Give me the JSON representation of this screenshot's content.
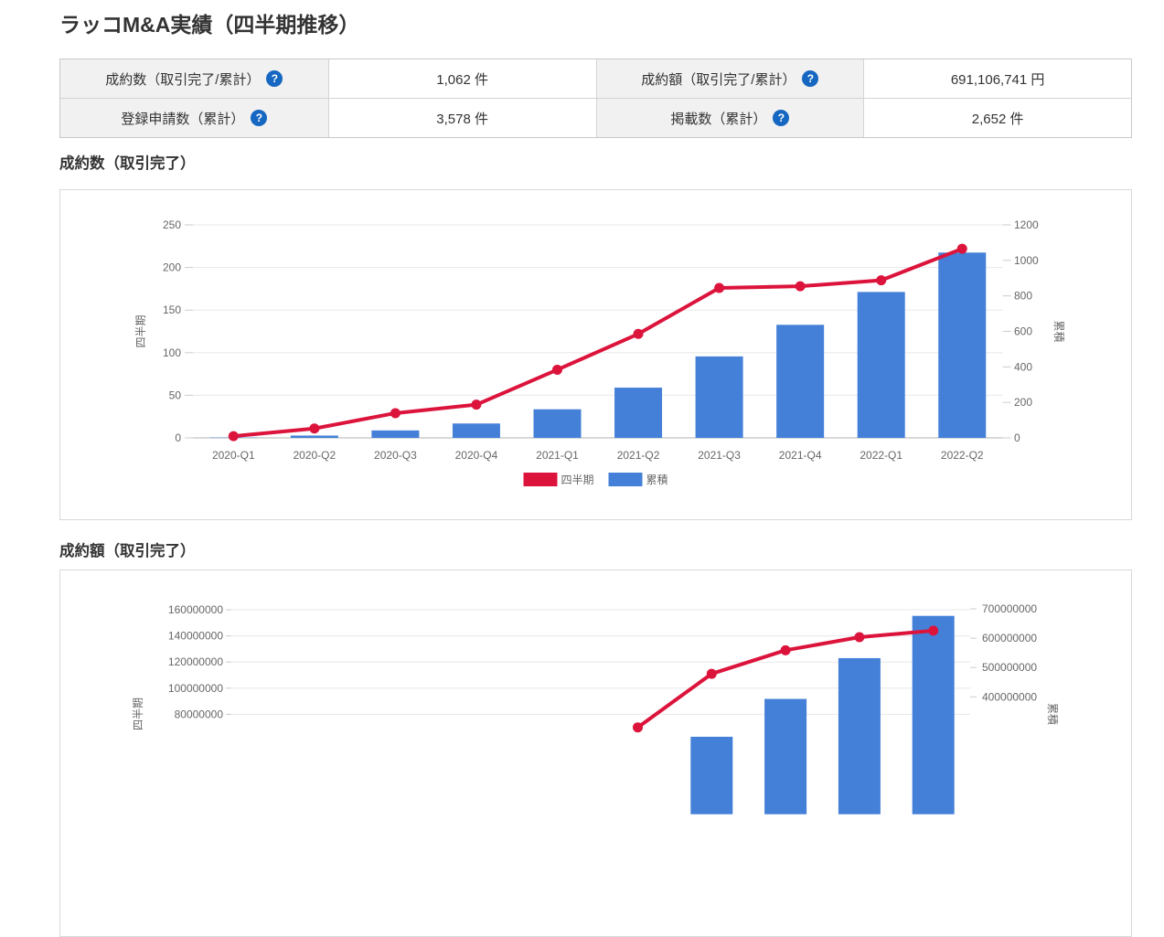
{
  "page_title": "ラッコM&A実績（四半期推移）",
  "icons": {
    "help_glyph": "?"
  },
  "stats": {
    "rows": [
      [
        {
          "label": "成約数（取引完了/累計）",
          "value": "1,062 件"
        },
        {
          "label": "成約額（取引完了/累計）",
          "value": "691,106,741 円"
        }
      ],
      [
        {
          "label": "登録申請数（累計）",
          "value": "3,578 件"
        },
        {
          "label": "掲載数（累計）",
          "value": "2,652 件"
        }
      ]
    ]
  },
  "colors": {
    "line_red": "#dc143c",
    "bar_blue": "#4480d8",
    "help_icon_blue": "#1667c1",
    "grid": "#e8e8e8",
    "axis_baseline": "#b3b3b3",
    "tick_dash": "#cccccc"
  },
  "chart_data": [
    {
      "type": "bar+line combo",
      "title": "成約数（取引完了）",
      "categories": [
        "2020-Q1",
        "2020-Q2",
        "2020-Q3",
        "2020-Q4",
        "2021-Q1",
        "2021-Q2",
        "2021-Q3",
        "2021-Q4",
        "2022-Q1",
        "2022-Q2"
      ],
      "series": [
        {
          "name": "四半期",
          "type": "line",
          "axis": "left",
          "color": "#dc143c",
          "values": [
            2,
            11,
            29,
            39,
            80,
            122,
            176,
            178,
            185,
            222
          ]
        },
        {
          "name": "累積",
          "type": "bar",
          "axis": "right",
          "color": "#4480d8",
          "values": [
            2,
            13,
            42,
            81,
            161,
            283,
            459,
            637,
            822,
            1044
          ]
        }
      ],
      "y_left": {
        "label": "四半期",
        "min": 0,
        "max": 250,
        "ticks": [
          0,
          50,
          100,
          150,
          200,
          250
        ]
      },
      "y_right": {
        "label": "累積",
        "min": 0,
        "max": 1200,
        "ticks": [
          0,
          200,
          400,
          600,
          800,
          1000,
          1200
        ]
      },
      "legend_labels": [
        "四半期",
        "累積"
      ],
      "grid": "horizontal only",
      "legend_position": "bottom"
    },
    {
      "type": "bar+line combo (bottom of chart cut off by viewport)",
      "title": "成約額（取引完了）",
      "visible_from_index": 6,
      "off_screen_anchor_index": 5,
      "series": [
        {
          "name": "四半期",
          "type": "line",
          "axis": "left",
          "color": "#dc143c",
          "values": [
            null,
            null,
            null,
            null,
            null,
            70000000,
            111000000,
            129000000,
            139000000,
            144000000
          ]
        },
        {
          "name": "累積",
          "type": "bar",
          "axis": "right",
          "color": "#4480d8",
          "values": [
            null,
            null,
            null,
            null,
            null,
            null,
            264000000,
            393000000,
            532000000,
            676000000
          ]
        }
      ],
      "y_left": {
        "label": "四半期",
        "min": 0,
        "max": 160000000,
        "ticks": [
          80000000,
          100000000,
          120000000,
          140000000,
          160000000
        ]
      },
      "y_right": {
        "label": "累積",
        "min": 0,
        "max": 700000000,
        "ticks": [
          400000000,
          500000000,
          600000000,
          700000000
        ]
      },
      "grid": "horizontal only"
    }
  ]
}
